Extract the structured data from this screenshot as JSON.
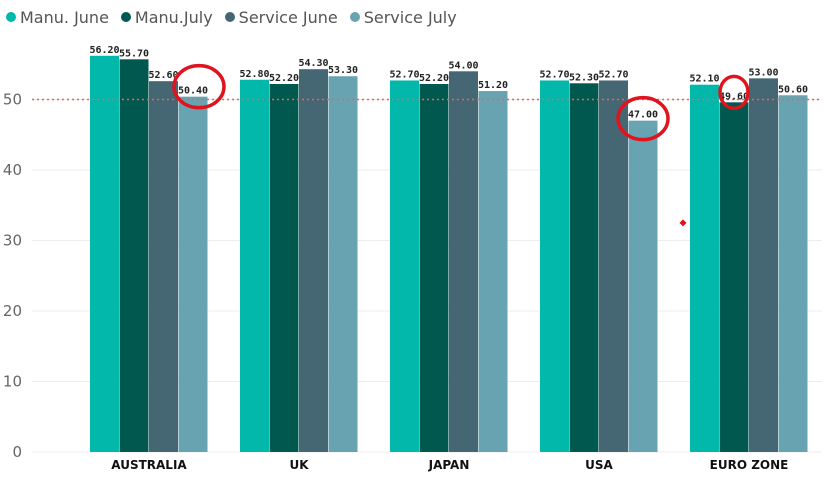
{
  "chart_data": {
    "type": "bar",
    "categories": [
      "AUSTRALIA",
      "UK",
      "JAPAN",
      "USA",
      "EURO ZONE"
    ],
    "series": [
      {
        "name": "Manu. June",
        "color": "#01B8AA",
        "values": [
          56.2,
          52.8,
          52.7,
          52.7,
          52.1
        ]
      },
      {
        "name": "Manu.July",
        "color": "#01584F",
        "values": [
          55.7,
          52.2,
          52.2,
          52.3,
          49.6
        ]
      },
      {
        "name": "Service June",
        "color": "#456673",
        "values": [
          52.6,
          54.3,
          54.0,
          52.7,
          53.0
        ]
      },
      {
        "name": "Service July",
        "color": "#68A3B1",
        "values": [
          50.4,
          53.3,
          51.2,
          47.0,
          50.6
        ]
      }
    ],
    "ylim": [
      0,
      60
    ],
    "yticks": [
      0,
      10,
      20,
      30,
      40,
      50
    ],
    "reference_line": {
      "value": 50,
      "color": "#E06666",
      "style": "dotted"
    },
    "grid": true,
    "legend": "top-left",
    "highlights": [
      {
        "category": "AUSTRALIA",
        "series": "Service July",
        "value": 50.4,
        "color": "#E0141E"
      },
      {
        "category": "USA",
        "series": "Service July",
        "value": 47.0,
        "color": "#E0141E"
      },
      {
        "category": "EURO ZONE",
        "series": "Manu.July",
        "value": 49.6,
        "color": "#E0141E"
      }
    ],
    "marker": {
      "category": "EURO ZONE",
      "value": 32.5,
      "color": "#E0141E"
    },
    "label_decimals": 2
  }
}
